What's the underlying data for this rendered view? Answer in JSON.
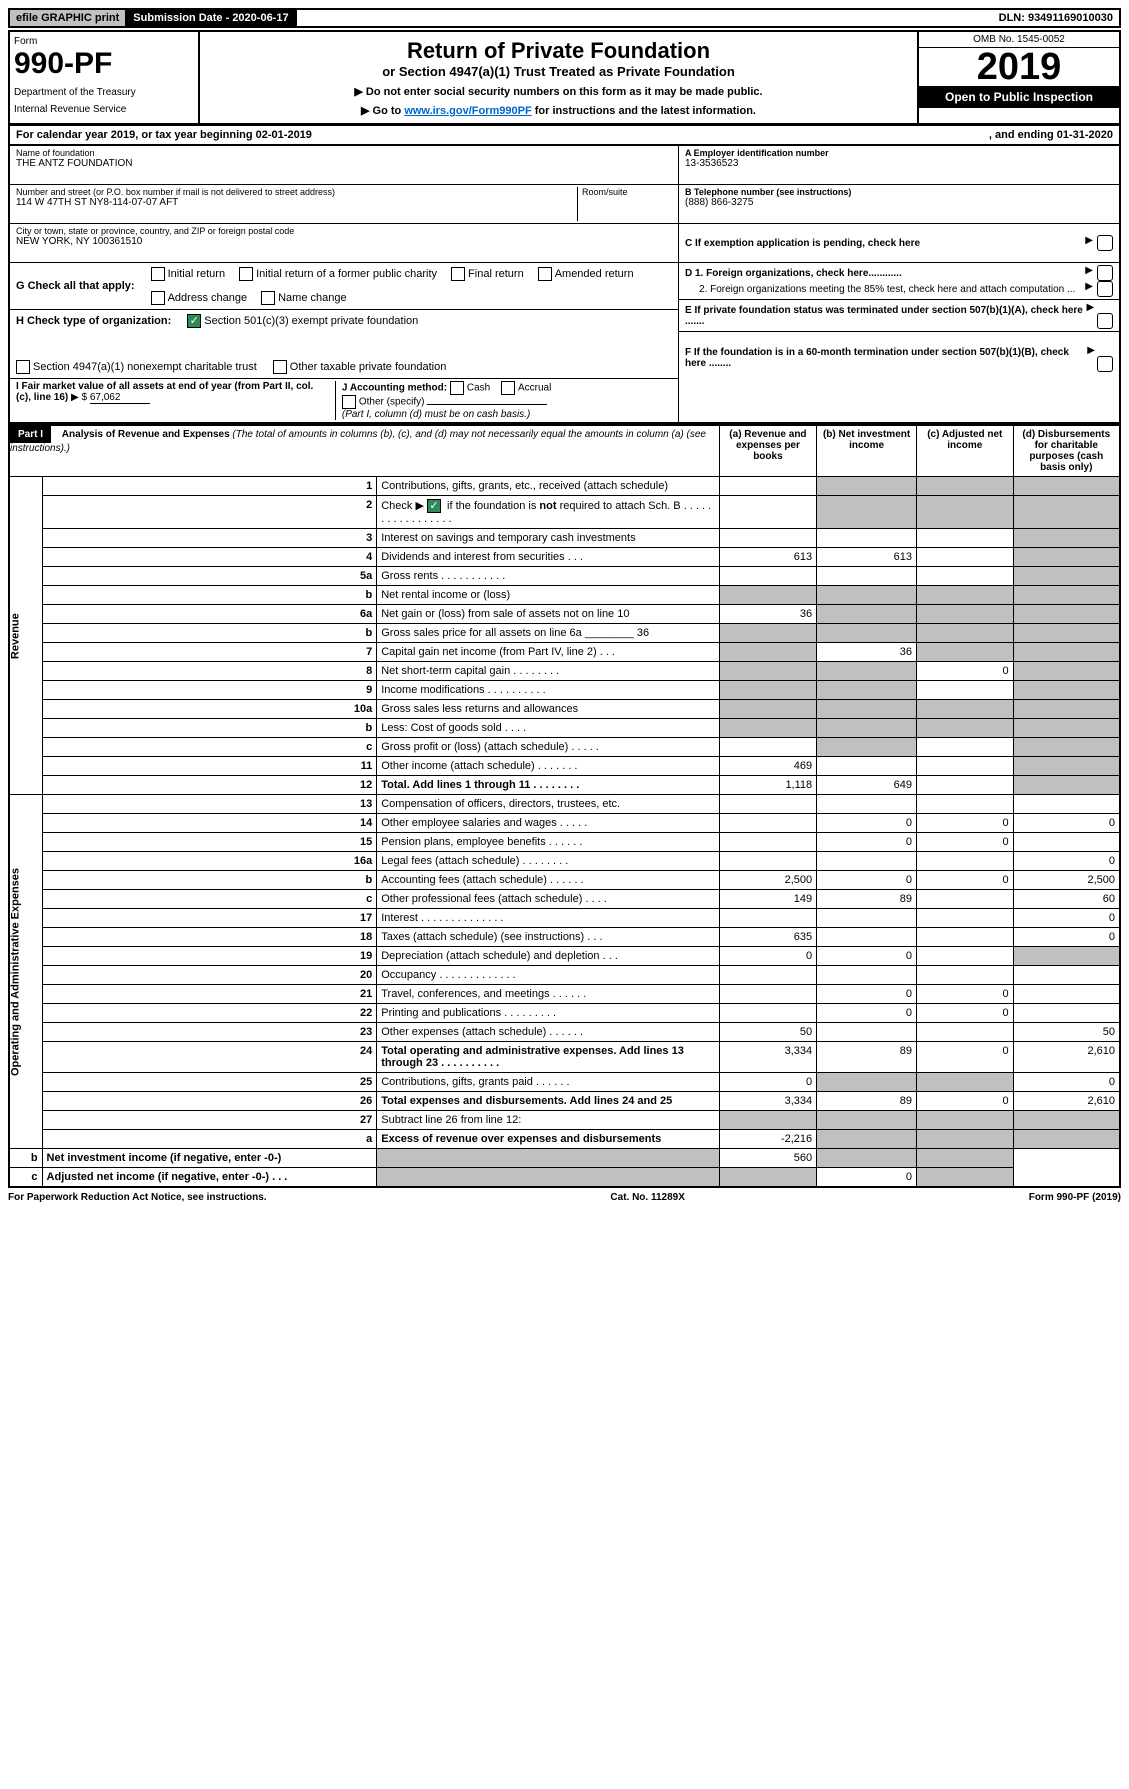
{
  "topbar": {
    "efile": "efile GRAPHIC print",
    "submission": "Submission Date - 2020-06-17",
    "dln": "DLN: 93491169010030"
  },
  "header": {
    "form_label": "Form",
    "form_number": "990-PF",
    "dept1": "Department of the Treasury",
    "dept2": "Internal Revenue Service",
    "title": "Return of Private Foundation",
    "subtitle": "or Section 4947(a)(1) Trust Treated as Private Foundation",
    "instr1": "▶ Do not enter social security numbers on this form as it may be made public.",
    "instr2_pre": "▶ Go to ",
    "instr2_link": "www.irs.gov/Form990PF",
    "instr2_post": " for instructions and the latest information.",
    "omb": "OMB No. 1545-0052",
    "year": "2019",
    "open": "Open to Public Inspection"
  },
  "calyear": {
    "text": "For calendar year 2019, or tax year beginning 02-01-2019",
    "ending": ", and ending 01-31-2020"
  },
  "entity": {
    "name_label": "Name of foundation",
    "name": "THE ANTZ FOUNDATION",
    "addr_label": "Number and street (or P.O. box number if mail is not delivered to street address)",
    "addr": "114 W 47TH ST NY8-114-07-07 AFT",
    "room_label": "Room/suite",
    "city_label": "City or town, state or province, country, and ZIP or foreign postal code",
    "city": "NEW YORK, NY  100361510",
    "a_label": "A Employer identification number",
    "ein": "13-3536523",
    "b_label": "B Telephone number (see instructions)",
    "phone": "(888) 866-3275",
    "c_label": "C If exemption application is pending, check here",
    "d1": "D 1. Foreign organizations, check here............",
    "d2": "2. Foreign organizations meeting the 85% test, check here and attach computation ...",
    "e": "E  If private foundation status was terminated under section 507(b)(1)(A), check here .......",
    "f": "F  If the foundation is in a 60-month termination under section 507(b)(1)(B), check here ........"
  },
  "g": {
    "label": "G Check all that apply:",
    "opts": [
      "Initial return",
      "Initial return of a former public charity",
      "Final return",
      "Amended return",
      "Address change",
      "Name change"
    ]
  },
  "h": {
    "label": "H Check type of organization:",
    "opt1": "Section 501(c)(3) exempt private foundation",
    "opt2": "Section 4947(a)(1) nonexempt charitable trust",
    "opt3": "Other taxable private foundation"
  },
  "i": {
    "label": "I Fair market value of all assets at end of year (from Part II, col. (c), line 16)",
    "arrow": "▶ $",
    "value": "67,062"
  },
  "j": {
    "label": "J Accounting method:",
    "cash": "Cash",
    "accrual": "Accrual",
    "other": "Other (specify)",
    "note": "(Part I, column (d) must be on cash basis.)"
  },
  "part1": {
    "label": "Part I",
    "title": "Analysis of Revenue and Expenses",
    "sub": "(The total of amounts in columns (b), (c), and (d) may not necessarily equal the amounts in column (a) (see instructions).)",
    "cols": {
      "a": "(a)    Revenue and expenses per books",
      "b": "(b)   Net investment income",
      "c": "(c)   Adjusted net income",
      "d": "(d)   Disbursements for charitable purposes (cash basis only)"
    }
  },
  "revenue_label": "Revenue",
  "expenses_label": "Operating and Administrative Expenses",
  "rows": [
    {
      "no": "1",
      "desc": "Contributions, gifts, grants, etc., received (attach schedule)",
      "a": "",
      "b": "",
      "c": "",
      "d": "",
      "db": "s",
      "dc": "s",
      "dd": "s"
    },
    {
      "no": "2",
      "desc": "Check ▶ ✔ if the foundation is not required to attach Sch. B",
      "a": "",
      "b": "",
      "c": "",
      "d": "",
      "db": "s",
      "dc": "s",
      "dd": "s",
      "chk": true
    },
    {
      "no": "3",
      "desc": "Interest on savings and temporary cash investments",
      "a": "",
      "b": "",
      "c": "",
      "d": "",
      "dd": "s"
    },
    {
      "no": "4",
      "desc": "Dividends and interest from securities   .   .   .",
      "a": "613",
      "b": "613",
      "c": "",
      "d": "",
      "dd": "s"
    },
    {
      "no": "5a",
      "desc": "Gross rents   .   .   .   .   .   .   .   .   .   .   .",
      "a": "",
      "b": "",
      "c": "",
      "d": "",
      "dd": "s"
    },
    {
      "no": "b",
      "desc": "Net rental income or (loss)",
      "a": "",
      "b": "",
      "c": "",
      "d": "",
      "da": "s",
      "db": "s",
      "dc": "s",
      "dd": "s"
    },
    {
      "no": "6a",
      "desc": "Net gain or (loss) from sale of assets not on line 10",
      "a": "36",
      "b": "",
      "c": "",
      "d": "",
      "db": "s",
      "dc": "s",
      "dd": "s"
    },
    {
      "no": "b",
      "desc": "Gross sales price for all assets on line 6a ________  36",
      "a": "",
      "b": "",
      "c": "",
      "d": "",
      "da": "s",
      "db": "s",
      "dc": "s",
      "dd": "s"
    },
    {
      "no": "7",
      "desc": "Capital gain net income (from Part IV, line 2)   .   .   .",
      "a": "",
      "b": "36",
      "c": "",
      "d": "",
      "da": "s",
      "dc": "s",
      "dd": "s"
    },
    {
      "no": "8",
      "desc": "Net short-term capital gain   .   .   .   .   .   .   .   .",
      "a": "",
      "b": "",
      "c": "0",
      "d": "",
      "da": "s",
      "db": "s",
      "dd": "s"
    },
    {
      "no": "9",
      "desc": "Income modifications  .   .   .   .   .   .   .   .   .   .",
      "a": "",
      "b": "",
      "c": "",
      "d": "",
      "da": "s",
      "db": "s",
      "dd": "s"
    },
    {
      "no": "10a",
      "desc": "Gross sales less returns and allowances",
      "a": "",
      "b": "",
      "c": "",
      "d": "",
      "da": "s",
      "db": "s",
      "dc": "s",
      "dd": "s"
    },
    {
      "no": "b",
      "desc": "Less: Cost of goods sold   .   .   .   .",
      "a": "",
      "b": "",
      "c": "",
      "d": "",
      "da": "s",
      "db": "s",
      "dc": "s",
      "dd": "s"
    },
    {
      "no": "c",
      "desc": "Gross profit or (loss) (attach schedule)   .   .   .   .   .",
      "a": "",
      "b": "",
      "c": "",
      "d": "",
      "db": "s",
      "dd": "s"
    },
    {
      "no": "11",
      "desc": "Other income (attach schedule)   .   .   .   .   .   .   .",
      "a": "469",
      "b": "",
      "c": "",
      "d": "",
      "dd": "s"
    },
    {
      "no": "12",
      "desc": "Total. Add lines 1 through 11   .   .   .   .   .   .   .   .",
      "a": "1,118",
      "b": "649",
      "c": "",
      "d": "",
      "bold": true,
      "dd": "s"
    },
    {
      "no": "13",
      "desc": "Compensation of officers, directors, trustees, etc.",
      "a": "",
      "b": "",
      "c": "",
      "d": ""
    },
    {
      "no": "14",
      "desc": "Other employee salaries and wages   .   .   .   .   .",
      "a": "",
      "b": "0",
      "c": "0",
      "d": "0"
    },
    {
      "no": "15",
      "desc": "Pension plans, employee benefits   .   .   .   .   .   .",
      "a": "",
      "b": "0",
      "c": "0",
      "d": ""
    },
    {
      "no": "16a",
      "desc": "Legal fees (attach schedule)  .   .   .   .   .   .   .   .",
      "a": "",
      "b": "",
      "c": "",
      "d": "0"
    },
    {
      "no": "b",
      "desc": "Accounting fees (attach schedule)   .   .   .   .   .   .",
      "a": "2,500",
      "b": "0",
      "c": "0",
      "d": "2,500"
    },
    {
      "no": "c",
      "desc": "Other professional fees (attach schedule)   .   .   .   .",
      "a": "149",
      "b": "89",
      "c": "",
      "d": "60"
    },
    {
      "no": "17",
      "desc": "Interest   .   .   .   .   .   .   .   .   .   .   .   .   .   .",
      "a": "",
      "b": "",
      "c": "",
      "d": "0"
    },
    {
      "no": "18",
      "desc": "Taxes (attach schedule) (see instructions)   .   .   .",
      "a": "635",
      "b": "",
      "c": "",
      "d": "0"
    },
    {
      "no": "19",
      "desc": "Depreciation (attach schedule) and depletion   .   .   .",
      "a": "0",
      "b": "0",
      "c": "",
      "d": "",
      "dd": "s"
    },
    {
      "no": "20",
      "desc": "Occupancy  .   .   .   .   .   .   .   .   .   .   .   .   .",
      "a": "",
      "b": "",
      "c": "",
      "d": ""
    },
    {
      "no": "21",
      "desc": "Travel, conferences, and meetings  .   .   .   .   .   .",
      "a": "",
      "b": "0",
      "c": "0",
      "d": ""
    },
    {
      "no": "22",
      "desc": "Printing and publications  .   .   .   .   .   .   .   .   .",
      "a": "",
      "b": "0",
      "c": "0",
      "d": ""
    },
    {
      "no": "23",
      "desc": "Other expenses (attach schedule)   .   .   .   .   .   .",
      "a": "50",
      "b": "",
      "c": "",
      "d": "50"
    },
    {
      "no": "24",
      "desc": "Total operating and administrative expenses. Add lines 13 through 23   .   .   .   .   .   .   .   .   .   .",
      "a": "3,334",
      "b": "89",
      "c": "0",
      "d": "2,610",
      "bold": true
    },
    {
      "no": "25",
      "desc": "Contributions, gifts, grants paid   .   .   .   .   .   .",
      "a": "0",
      "b": "",
      "c": "",
      "d": "0",
      "db": "s",
      "dc": "s"
    },
    {
      "no": "26",
      "desc": "Total expenses and disbursements. Add lines 24 and 25",
      "a": "3,334",
      "b": "89",
      "c": "0",
      "d": "2,610",
      "bold": true
    },
    {
      "no": "27",
      "desc": "Subtract line 26 from line 12:",
      "a": "",
      "b": "",
      "c": "",
      "d": "",
      "da": "s",
      "db": "s",
      "dc": "s",
      "dd": "s"
    },
    {
      "no": "a",
      "desc": "Excess of revenue over expenses and disbursements",
      "a": "-2,216",
      "b": "",
      "c": "",
      "d": "",
      "bold": true,
      "db": "s",
      "dc": "s",
      "dd": "s"
    },
    {
      "no": "b",
      "desc": "Net investment income (if negative, enter -0-)",
      "a": "",
      "b": "560",
      "c": "",
      "d": "",
      "bold": true,
      "da": "s",
      "dc": "s",
      "dd": "s"
    },
    {
      "no": "c",
      "desc": "Adjusted net income (if negative, enter -0-)   .   .   .",
      "a": "",
      "b": "",
      "c": "0",
      "d": "",
      "bold": true,
      "da": "s",
      "db": "s",
      "dd": "s"
    }
  ],
  "footer": {
    "left": "For Paperwork Reduction Act Notice, see instructions.",
    "mid": "Cat. No. 11289X",
    "right": "Form 990-PF (2019)"
  },
  "colors": {
    "shaded": "#c0c0c0",
    "link": "#0066cc",
    "green": "#2e8b57"
  }
}
